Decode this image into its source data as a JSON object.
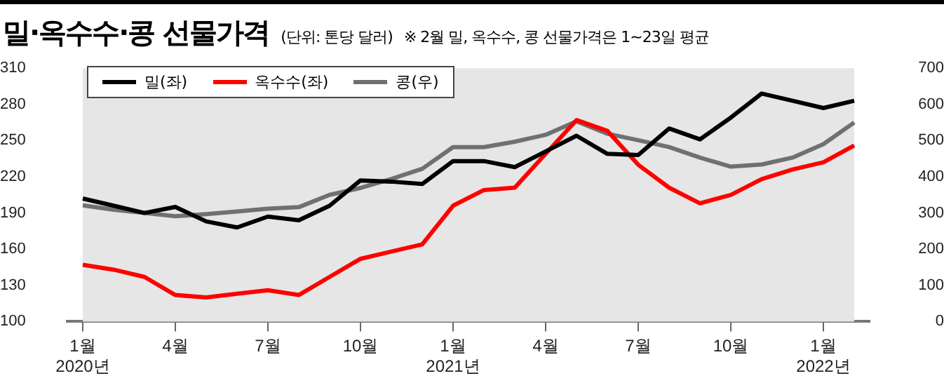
{
  "chart_data": {
    "type": "line",
    "title": "밀·옥수수·콩 선물가격",
    "subtitle": "(단위: 톤당 달러)",
    "annotations": [
      "※ 2월 밀, 옥수수, 콩 선물가격은 1~23일 평균"
    ],
    "categories": [
      "1월\n2020년",
      null,
      null,
      "4월",
      null,
      null,
      "7월",
      null,
      null,
      "10월",
      null,
      null,
      "1월\n2021년",
      null,
      null,
      "4월",
      null,
      null,
      "7월",
      null,
      null,
      "10월",
      null,
      null,
      "1월\n2022년",
      null
    ],
    "series": [
      {
        "name": "밀(좌)",
        "color": "#000000",
        "values": [
          202,
          196,
          190,
          195,
          183,
          178,
          187,
          184,
          196,
          217,
          216,
          214,
          233,
          233,
          228,
          241,
          254,
          239,
          238,
          260,
          251,
          269,
          289,
          283,
          277,
          283
        ]
      },
      {
        "name": "옥수수(좌)",
        "color": "#ff0000",
        "values": [
          147,
          143,
          137,
          122,
          120,
          123,
          126,
          122,
          137,
          152,
          158,
          164,
          196,
          209,
          211,
          239,
          267,
          258,
          230,
          211,
          198,
          205,
          218,
          226,
          232,
          246
        ]
      },
      {
        "name": "콩(우)",
        "color": "#707070",
        "axis": "y2",
        "values": [
          321,
          309,
          300,
          291,
          297,
          304,
          312,
          316,
          350,
          369,
          394,
          422,
          482,
          482,
          497,
          516,
          553,
          519,
          501,
          482,
          453,
          428,
          434,
          453,
          490,
          550
        ]
      }
    ],
    "ylim": [
      100,
      310
    ],
    "yticks": [
      100,
      130,
      160,
      190,
      220,
      250,
      280,
      310
    ],
    "y2lim": [
      0,
      700
    ],
    "y2ticks": [
      0,
      100,
      200,
      300,
      400,
      500,
      600,
      700
    ],
    "grid": false,
    "legend": "top left",
    "marker": "none",
    "line_style": "solid"
  }
}
